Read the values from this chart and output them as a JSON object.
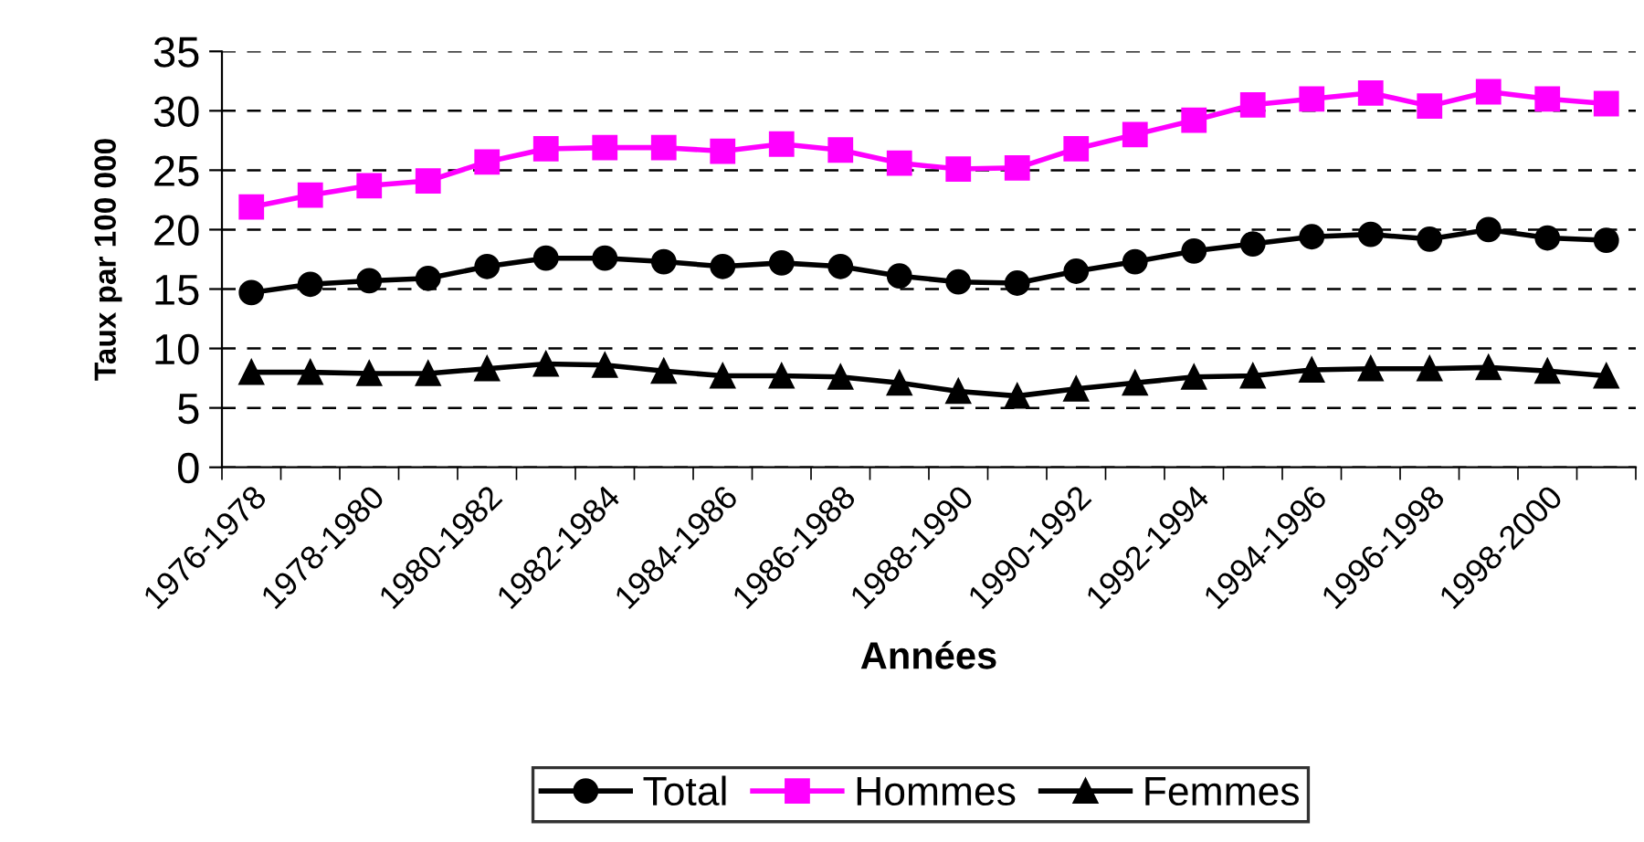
{
  "chart_data": {
    "type": "line",
    "xlabel": "Années",
    "ylabel": "Taux par 100 000",
    "categories": [
      "1976-1978",
      null,
      "1978-1980",
      null,
      "1980-1982",
      null,
      "1982-1984",
      null,
      "1984-1986",
      null,
      "1986-1988",
      null,
      "1988-1990",
      null,
      "1990-1992",
      null,
      "1992-1994",
      null,
      "1994-1996",
      null,
      "1996-1998",
      null,
      "1998-2000",
      null
    ],
    "series": [
      {
        "name": "Total",
        "color": "#000000",
        "marker": "circle",
        "values": [
          14.7,
          15.4,
          15.7,
          15.9,
          16.9,
          17.6,
          17.6,
          17.3,
          16.9,
          17.2,
          16.9,
          16.1,
          15.6,
          15.5,
          16.5,
          17.3,
          18.2,
          18.8,
          19.4,
          19.6,
          19.2,
          20.0,
          19.3,
          19.1
        ]
      },
      {
        "name": "Hommes",
        "color": "#ff00ff",
        "marker": "square",
        "values": [
          21.9,
          22.9,
          23.7,
          24.1,
          25.7,
          26.8,
          26.9,
          26.9,
          26.6,
          27.2,
          26.7,
          25.6,
          25.1,
          25.2,
          26.8,
          28.0,
          29.2,
          30.5,
          31.0,
          31.5,
          30.4,
          31.6,
          31.0,
          30.6
        ]
      },
      {
        "name": "Femmes",
        "color": "#000000",
        "marker": "triangle",
        "values": [
          8.0,
          8.0,
          7.9,
          7.9,
          8.3,
          8.7,
          8.6,
          8.1,
          7.7,
          7.7,
          7.6,
          7.1,
          6.4,
          6.0,
          6.6,
          7.1,
          7.6,
          7.7,
          8.2,
          8.3,
          8.3,
          8.4,
          8.1,
          7.7
        ]
      }
    ],
    "ylim": [
      0,
      35
    ],
    "yticks": [
      0,
      5,
      10,
      15,
      20,
      25,
      30,
      35
    ],
    "grid": "y",
    "legend": "bottom",
    "line_style": "solid"
  }
}
